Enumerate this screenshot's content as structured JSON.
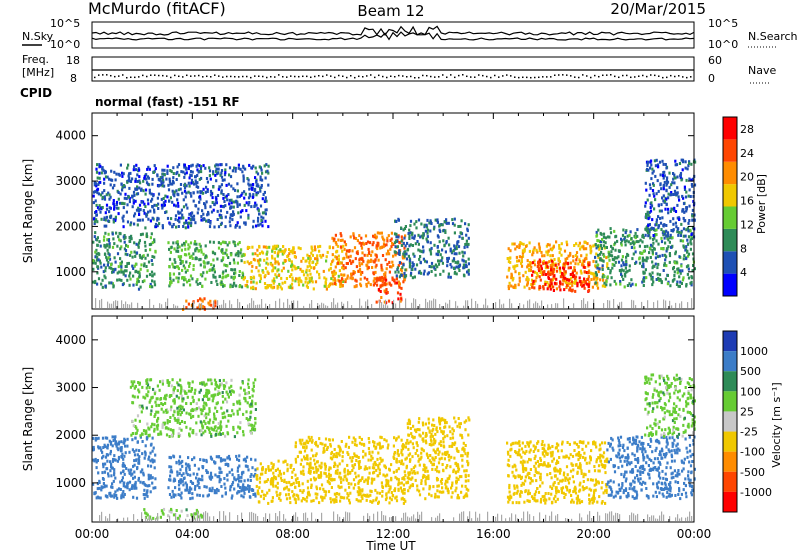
{
  "header": {
    "station": "McMurdo (fitACF)",
    "beam": "Beam 12",
    "date": "20/Mar/2015"
  },
  "noise_panel": {
    "left_label": "N.Sky",
    "right_label": "N.Search",
    "left_ticks": [
      "10^5",
      "10^0"
    ],
    "right_ticks": [
      "10^5",
      "10^0"
    ]
  },
  "freq_panel": {
    "left_label_1": "Freq.",
    "left_label_2": "[MHz]",
    "right_label": "Nave",
    "left_ticks": [
      "18",
      "8"
    ],
    "right_ticks": [
      "60",
      "0"
    ]
  },
  "cpid": {
    "label": "CPID",
    "text": "normal (fast) -151 RF"
  },
  "colors": {
    "power": [
      "#0000ff",
      "#1e50b4",
      "#2e8b57",
      "#66cc33",
      "#f0c800",
      "#ff8c00",
      "#ff4500",
      "#ff0000"
    ],
    "velocity": [
      "#1e3cb4",
      "#3c7dc8",
      "#2e8b57",
      "#66cc33",
      "#c8c8c8",
      "#f0c800",
      "#ff8c00",
      "#ff4500",
      "#ff0000"
    ],
    "ground_scatter": "#a9a9a9"
  },
  "chart_data": [
    {
      "type": "heatmap",
      "title": "Power",
      "ylabel": "Slant Range [km]",
      "xlabel": "",
      "ylim": [
        180,
        4500
      ],
      "yticks": [
        "1000",
        "2000",
        "3000",
        "4000"
      ],
      "colorbar": {
        "label": "Power [dB]",
        "ticks": [
          "4",
          "8",
          "12",
          "16",
          "20",
          "24",
          "28"
        ],
        "range": [
          0,
          30
        ]
      },
      "series": [
        {
          "start_h": 0.0,
          "end_h": 2.5,
          "range_lo": 650,
          "range_hi": 1900,
          "value": 10
        },
        {
          "start_h": 0.0,
          "end_h": 7.0,
          "range_lo": 2000,
          "range_hi": 3400,
          "value": 6
        },
        {
          "start_h": 3.0,
          "end_h": 6.0,
          "range_lo": 700,
          "range_hi": 1700,
          "value": 12
        },
        {
          "start_h": 3.5,
          "end_h": 5.0,
          "range_lo": 200,
          "range_hi": 450,
          "value": 24
        },
        {
          "start_h": 6.0,
          "end_h": 10.0,
          "range_lo": 650,
          "range_hi": 1600,
          "value": 18
        },
        {
          "start_h": 9.5,
          "end_h": 12.5,
          "range_lo": 700,
          "range_hi": 1900,
          "value": 24
        },
        {
          "start_h": 11.3,
          "end_h": 12.3,
          "range_lo": 350,
          "range_hi": 900,
          "value": 26
        },
        {
          "start_h": 12.0,
          "end_h": 15.0,
          "range_lo": 900,
          "range_hi": 2200,
          "value": 8
        },
        {
          "start_h": 16.5,
          "end_h": 20.5,
          "range_lo": 650,
          "range_hi": 1700,
          "value": 20
        },
        {
          "start_h": 17.5,
          "end_h": 19.8,
          "range_lo": 600,
          "range_hi": 1300,
          "value": 28
        },
        {
          "start_h": 20.0,
          "end_h": 24.0,
          "range_lo": 700,
          "range_hi": 2000,
          "value": 10
        },
        {
          "start_h": 22.0,
          "end_h": 24.0,
          "range_lo": 1800,
          "range_hi": 3500,
          "value": 6
        }
      ]
    },
    {
      "type": "heatmap",
      "title": "Velocity",
      "ylabel": "Slant Range [km]",
      "xlabel": "Time UT",
      "ylim": [
        180,
        4500
      ],
      "yticks": [
        "1000",
        "2000",
        "3000",
        "4000"
      ],
      "xticks": [
        "00:00",
        "04:00",
        "08:00",
        "12:00",
        "16:00",
        "20:00",
        "00:00"
      ],
      "xlim": [
        0,
        24
      ],
      "colorbar": {
        "label": "Velocity [m s⁻¹]",
        "ticks": [
          "1000",
          "500",
          "100",
          "25",
          "-25",
          "-100",
          "-500",
          "-1000"
        ]
      },
      "series": [
        {
          "start_h": 0.0,
          "end_h": 2.5,
          "range_lo": 700,
          "range_hi": 2000,
          "value": 200
        },
        {
          "start_h": 1.5,
          "end_h": 6.5,
          "range_lo": 2000,
          "range_hi": 3200,
          "value": 0
        },
        {
          "start_h": 2.0,
          "end_h": 4.5,
          "range_lo": 280,
          "range_hi": 480,
          "value": 0
        },
        {
          "start_h": 3.0,
          "end_h": 6.5,
          "range_lo": 700,
          "range_hi": 1600,
          "value": 150
        },
        {
          "start_h": 6.5,
          "end_h": 8.0,
          "range_lo": 600,
          "range_hi": 1500,
          "value": -150
        },
        {
          "start_h": 8.0,
          "end_h": 12.5,
          "range_lo": 600,
          "range_hi": 2000,
          "value": -300
        },
        {
          "start_h": 12.5,
          "end_h": 15.0,
          "range_lo": 700,
          "range_hi": 2400,
          "value": -200
        },
        {
          "start_h": 16.5,
          "end_h": 20.5,
          "range_lo": 600,
          "range_hi": 1900,
          "value": -300
        },
        {
          "start_h": 20.5,
          "end_h": 24.0,
          "range_lo": 700,
          "range_hi": 2000,
          "value": 150
        },
        {
          "start_h": 22.0,
          "end_h": 24.0,
          "range_lo": 2000,
          "range_hi": 3300,
          "value": 0
        }
      ]
    }
  ]
}
